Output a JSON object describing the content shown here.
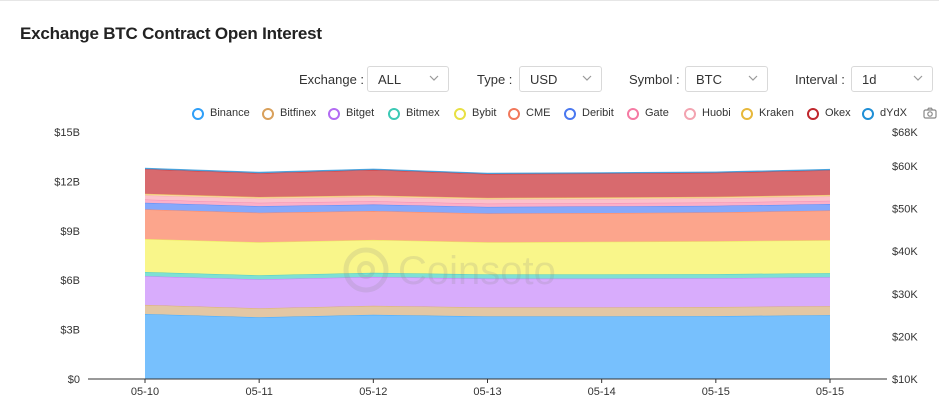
{
  "title": "Exchange BTC Contract Open Interest",
  "filters": [
    {
      "label": "Exchange :",
      "value": "ALL"
    },
    {
      "label": "Type :",
      "value": "USD"
    },
    {
      "label": "Symbol :",
      "value": "BTC"
    },
    {
      "label": "Interval :",
      "value": "1d"
    }
  ],
  "icons": {
    "camera": "camera-icon",
    "chevron": "chevron-down-icon",
    "watermark": "coinsoto-logo"
  },
  "watermark_text": "Coinsoto",
  "chart_data": {
    "type": "area",
    "stacked": true,
    "x": [
      "05-10",
      "05-11",
      "05-12",
      "05-13",
      "05-14",
      "05-15",
      "05-15"
    ],
    "y_left": {
      "ticks": [
        "$0",
        "$3B",
        "$6B",
        "$9B",
        "$12B",
        "$15B"
      ],
      "ylim": [
        0,
        15
      ],
      "unit": "B"
    },
    "y_right": {
      "ticks": [
        "$10K",
        "$20K",
        "$30K",
        "$40K",
        "$50K",
        "$60K",
        "$68K"
      ]
    },
    "grid": false,
    "legend_position": "top",
    "series": [
      {
        "name": "Binance",
        "color": "#77c0fd",
        "legend_color": "#2f9ff8",
        "values": [
          3.95,
          3.75,
          3.9,
          3.8,
          3.8,
          3.82,
          3.88
        ]
      },
      {
        "name": "Bitfinex",
        "color": "#e3c7a4",
        "legend_color": "#d9a05b",
        "values": [
          0.55,
          0.55,
          0.55,
          0.55,
          0.55,
          0.55,
          0.55
        ]
      },
      {
        "name": "Bitget",
        "color": "#d8acfc",
        "legend_color": "#b36cf3",
        "values": [
          1.75,
          1.75,
          1.75,
          1.75,
          1.75,
          1.75,
          1.75
        ]
      },
      {
        "name": "Bitmex",
        "color": "#7ee0d4",
        "legend_color": "#3cc9b5",
        "values": [
          0.25,
          0.25,
          0.25,
          0.25,
          0.25,
          0.25,
          0.25
        ]
      },
      {
        "name": "Bybit",
        "color": "#f9f68a",
        "legend_color": "#e8e043",
        "values": [
          2.0,
          2.0,
          2.0,
          1.95,
          1.98,
          2.0,
          2.0
        ]
      },
      {
        "name": "CME",
        "color": "#fca58c",
        "legend_color": "#f1785b",
        "values": [
          1.8,
          1.8,
          1.75,
          1.75,
          1.75,
          1.75,
          1.8
        ]
      },
      {
        "name": "Deribit",
        "color": "#86a8fb",
        "legend_color": "#4a78f0",
        "values": [
          0.4,
          0.4,
          0.4,
          0.4,
          0.4,
          0.4,
          0.4
        ]
      },
      {
        "name": "Gate",
        "color": "#fbb0c9",
        "legend_color": "#f57aa3",
        "values": [
          0.2,
          0.2,
          0.2,
          0.2,
          0.2,
          0.2,
          0.2
        ]
      },
      {
        "name": "Huobi",
        "color": "#fcc1cb",
        "legend_color": "#f3a3b0",
        "values": [
          0.25,
          0.25,
          0.25,
          0.25,
          0.25,
          0.25,
          0.25
        ]
      },
      {
        "name": "Kraken",
        "color": "#f8d7a0",
        "legend_color": "#e7b83b",
        "values": [
          0.1,
          0.1,
          0.1,
          0.1,
          0.1,
          0.1,
          0.1
        ]
      },
      {
        "name": "Okex",
        "color": "#d86a6e",
        "legend_color": "#c0272d",
        "values": [
          1.5,
          1.45,
          1.55,
          1.45,
          1.45,
          1.45,
          1.5
        ]
      },
      {
        "name": "dYdX",
        "color": "#5fa6d8",
        "legend_color": "#1f8fd6",
        "values": [
          0.05,
          0.05,
          0.05,
          0.05,
          0.05,
          0.05,
          0.05
        ]
      }
    ]
  }
}
